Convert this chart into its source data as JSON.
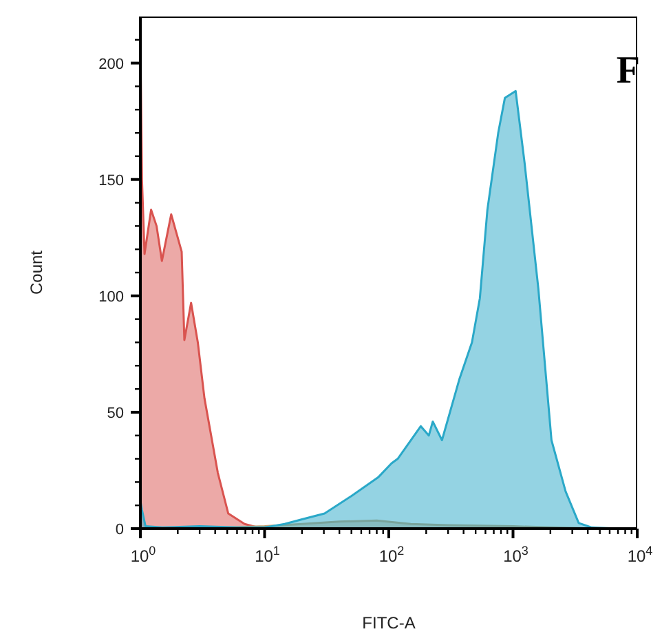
{
  "chart_data": {
    "type": "area",
    "title": "F",
    "xlabel": "FITC-A",
    "ylabel": "Count",
    "log": "x",
    "marker": "none",
    "xlim": [
      1,
      10000
    ],
    "xticks": [
      {
        "value": 1,
        "label": "10$^{0}$"
      },
      {
        "value": 2,
        "label": null
      },
      {
        "value": 3,
        "label": null
      },
      {
        "value": 4,
        "label": null
      },
      {
        "value": 5,
        "label": null
      },
      {
        "value": 6,
        "label": null
      },
      {
        "value": 7,
        "label": null
      },
      {
        "value": 8,
        "label": null
      },
      {
        "value": 9,
        "label": null
      },
      {
        "value": 10,
        "label": "10$^{1}$"
      },
      {
        "value": 20,
        "label": null
      },
      {
        "value": 30,
        "label": null
      },
      {
        "value": 40,
        "label": null
      },
      {
        "value": 50,
        "label": null
      },
      {
        "value": 60,
        "label": null
      },
      {
        "value": 70,
        "label": null
      },
      {
        "value": 80,
        "label": null
      },
      {
        "value": 90,
        "label": null
      },
      {
        "value": 100,
        "label": "10$^{2}$"
      },
      {
        "value": 200,
        "label": null
      },
      {
        "value": 300,
        "label": null
      },
      {
        "value": 400,
        "label": null
      },
      {
        "value": 500,
        "label": null
      },
      {
        "value": 600,
        "label": null
      },
      {
        "value": 700,
        "label": null
      },
      {
        "value": 800,
        "label": null
      },
      {
        "value": 900,
        "label": null
      },
      {
        "value": 1000,
        "label": "10$^{3}$"
      },
      {
        "value": 2000,
        "label": null
      },
      {
        "value": 3000,
        "label": null
      },
      {
        "value": 4000,
        "label": null
      },
      {
        "value": 5000,
        "label": null
      },
      {
        "value": 6000,
        "label": null
      },
      {
        "value": 7000,
        "label": null
      },
      {
        "value": 8000,
        "label": null
      },
      {
        "value": 9000,
        "label": null
      },
      {
        "value": 10000,
        "label": "10$^{4}$"
      }
    ],
    "ylim": [
      0,
      220
    ],
    "yticks": [
      0,
      {
        "value": 10,
        "label": null
      },
      {
        "value": 20,
        "label": null
      },
      {
        "value": 30,
        "label": null
      },
      {
        "value": 40,
        "label": null
      },
      50,
      {
        "value": 60,
        "label": null
      },
      {
        "value": 70,
        "label": null
      },
      {
        "value": 80,
        "label": null
      },
      {
        "value": 90,
        "label": null
      },
      100,
      {
        "value": 110,
        "label": null
      },
      {
        "value": 120,
        "label": null
      },
      {
        "value": 130,
        "label": null
      },
      {
        "value": 140,
        "label": null
      },
      150,
      {
        "value": 160,
        "label": null
      },
      {
        "value": 170,
        "label": null
      },
      {
        "value": 180,
        "label": null
      },
      {
        "value": 190,
        "label": null
      },
      200,
      {
        "value": 210,
        "label": null
      }
    ],
    "series": [
      {
        "color": "#d9534f",
        "x": [
          1,
          1.03,
          1.08,
          1.22,
          1.35,
          1.49,
          1.77,
          2.15,
          2.26,
          2.56,
          2.9,
          3.28,
          4.2,
          5.1,
          6.9,
          8.8,
          10
        ],
        "values": [
          212,
          150,
          118,
          137,
          130,
          115,
          135,
          119,
          81,
          97,
          80,
          56,
          24,
          6.5,
          2,
          0.5,
          0
        ]
      },
      {
        "color": "#c8a070",
        "x": [
          1,
          5,
          10,
          20,
          40,
          80,
          150,
          300,
          1000,
          3000,
          5000
        ],
        "values": [
          0,
          0.5,
          1,
          2,
          3,
          3.5,
          2,
          1.5,
          1,
          0.3,
          0
        ]
      },
      {
        "color": "#2aa8c8",
        "x": [
          1,
          1.03,
          1.1,
          1.5,
          3,
          6,
          10,
          11.3,
          14.5,
          20,
          30.4,
          49.9,
          82,
          105,
          118,
          181,
          210,
          226,
          268,
          369,
          467,
          541,
          622,
          760,
          860,
          1050,
          1240,
          1600,
          2040,
          2650,
          3380,
          4300,
          7100,
          10000
        ],
        "values": [
          12,
          8,
          1,
          0.5,
          1,
          0.5,
          0.5,
          1,
          2,
          4,
          6.5,
          14,
          22,
          28,
          30,
          44,
          40,
          46,
          38,
          64,
          80,
          99,
          137,
          170,
          185,
          188,
          157,
          103,
          38,
          16,
          2.4,
          0.5,
          0,
          0
        ]
      }
    ]
  }
}
